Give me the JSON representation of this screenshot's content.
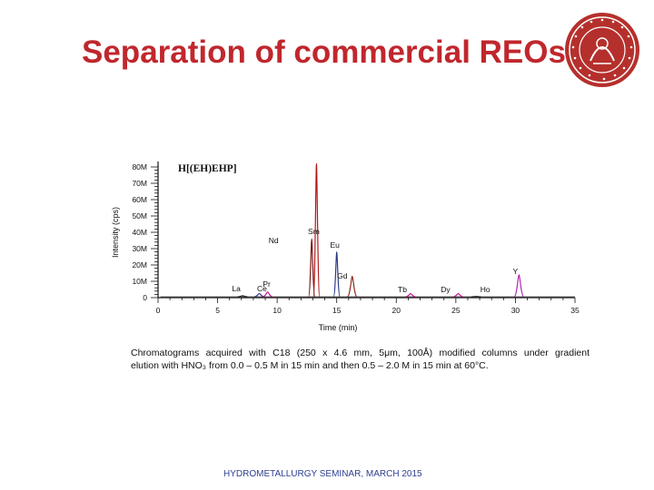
{
  "slide": {
    "title": "Separation of commercial REOs",
    "caption_line1": "Chromatograms acquired with C18 (250 x 4.6 mm, 5μm, 100Å) modified columns under gradient",
    "caption_line2": "elution with HNO₃ from 0.0 – 0.5 M in 15 min and then 0.5 – 2.0 M in 15 min at 60°C.",
    "footer": "HYDROMETALLURGY SEMINAR, MARCH 2015",
    "logo_icon": "university-seal-icon"
  },
  "chart_data": {
    "type": "line",
    "title": "H[(EH)EHP]",
    "xlabel": "Time (min)",
    "ylabel": "Intensity (cps)",
    "xlim": [
      0,
      35
    ],
    "ylim": [
      0,
      80000000
    ],
    "x_ticks": [
      0,
      5,
      10,
      15,
      20,
      25,
      30,
      35
    ],
    "y_ticks": [
      0,
      10000000,
      20000000,
      30000000,
      40000000,
      50000000,
      60000000,
      70000000,
      80000000
    ],
    "y_tick_labels": [
      "0",
      "10M",
      "20M",
      "30M",
      "40M",
      "50M",
      "60M",
      "70M",
      "80M"
    ],
    "peaks": [
      {
        "name": "La",
        "x": 7.1,
        "y": 1200000,
        "color": "#2b2b2b"
      },
      {
        "name": "Ce",
        "x": 8.5,
        "y": 2500000,
        "color": "#3a3a8a"
      },
      {
        "name": "Pr",
        "x": 9.2,
        "y": 3500000,
        "color": "#c2188f"
      },
      {
        "name": "Nd",
        "x": 12.9,
        "y": 36000000,
        "color": "#7b1a1a"
      },
      {
        "name": "Sm",
        "x": 13.3,
        "y": 82000000,
        "color": "#b01818"
      },
      {
        "name": "Eu",
        "x": 15.0,
        "y": 28000000,
        "color": "#2a3a8a"
      },
      {
        "name": "Gd",
        "x": 16.3,
        "y": 13000000,
        "color": "#8b2a1a"
      },
      {
        "name": "Tb",
        "x": 21.2,
        "y": 2500000,
        "color": "#c2188f"
      },
      {
        "name": "Dy",
        "x": 25.2,
        "y": 2500000,
        "color": "#c2188f"
      },
      {
        "name": "Ho",
        "x": 26.7,
        "y": 800000,
        "color": "#333333"
      },
      {
        "name": "Y",
        "x": 30.3,
        "y": 14000000,
        "color": "#b02ab0"
      }
    ],
    "grid": false,
    "legend": "none"
  }
}
